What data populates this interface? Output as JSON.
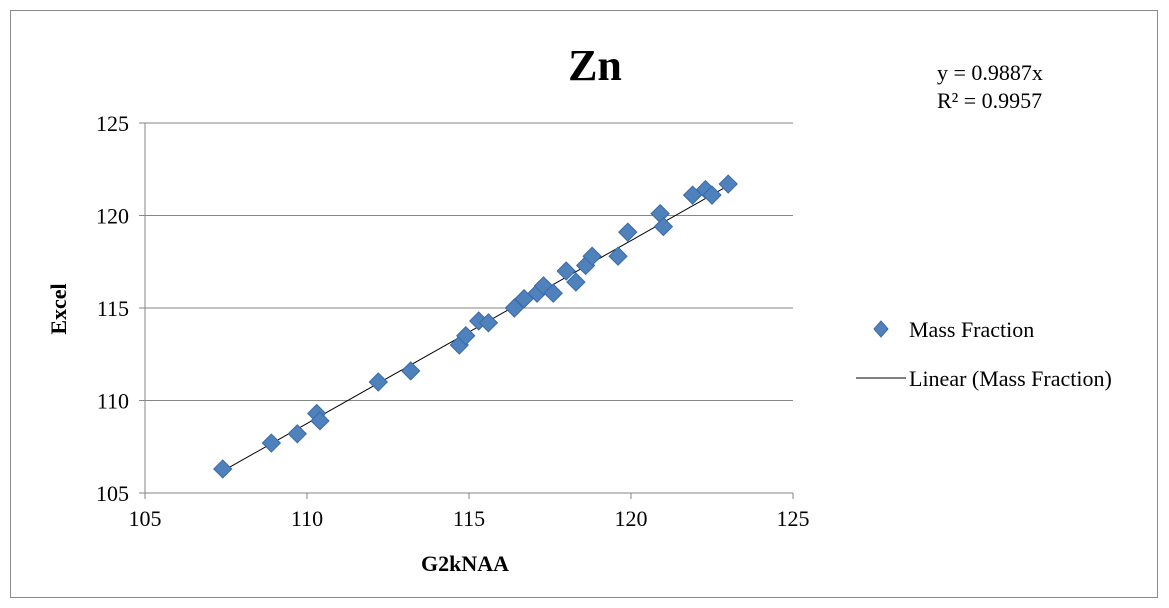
{
  "chart_data": {
    "type": "scatter",
    "title": "Zn",
    "xlabel": "G2kNAA",
    "ylabel": "Excel",
    "xlim": [
      105,
      125
    ],
    "ylim": [
      105,
      125
    ],
    "xticks": [
      "105",
      "110",
      "115",
      "120",
      "125"
    ],
    "yticks": [
      "105",
      "110",
      "115",
      "120",
      "125"
    ],
    "grid": "horizontal major gridlines",
    "legend_position": "right",
    "trendline_equation": "y = 0.9887x",
    "r_squared": "R² = 0.9957",
    "colors": {
      "marker": "#4f81bd",
      "marker_edge": "#3a6aa6",
      "trendline": "#000000",
      "grid": "#868686"
    },
    "series": [
      {
        "name": "Mass Fraction",
        "marker": "diamond",
        "points": [
          [
            107.4,
            106.3
          ],
          [
            108.9,
            107.7
          ],
          [
            109.7,
            108.2
          ],
          [
            110.3,
            109.3
          ],
          [
            110.4,
            108.9
          ],
          [
            112.2,
            111.0
          ],
          [
            113.2,
            111.6
          ],
          [
            114.7,
            113.0
          ],
          [
            114.9,
            113.5
          ],
          [
            115.3,
            114.3
          ],
          [
            115.6,
            114.2
          ],
          [
            116.4,
            115.0
          ],
          [
            116.7,
            115.5
          ],
          [
            117.1,
            115.8
          ],
          [
            117.3,
            116.2
          ],
          [
            117.6,
            115.8
          ],
          [
            118.0,
            117.0
          ],
          [
            118.3,
            116.4
          ],
          [
            118.6,
            117.3
          ],
          [
            118.8,
            117.8
          ],
          [
            119.6,
            117.8
          ],
          [
            119.9,
            119.1
          ],
          [
            120.9,
            120.1
          ],
          [
            121.0,
            119.4
          ],
          [
            121.9,
            121.1
          ],
          [
            122.3,
            121.4
          ],
          [
            122.5,
            121.1
          ],
          [
            123.0,
            121.7
          ]
        ]
      },
      {
        "name": "Linear (Mass Fraction)",
        "type": "line",
        "slope": 0.9887,
        "x_range": [
          107.4,
          123.0
        ]
      }
    ]
  }
}
